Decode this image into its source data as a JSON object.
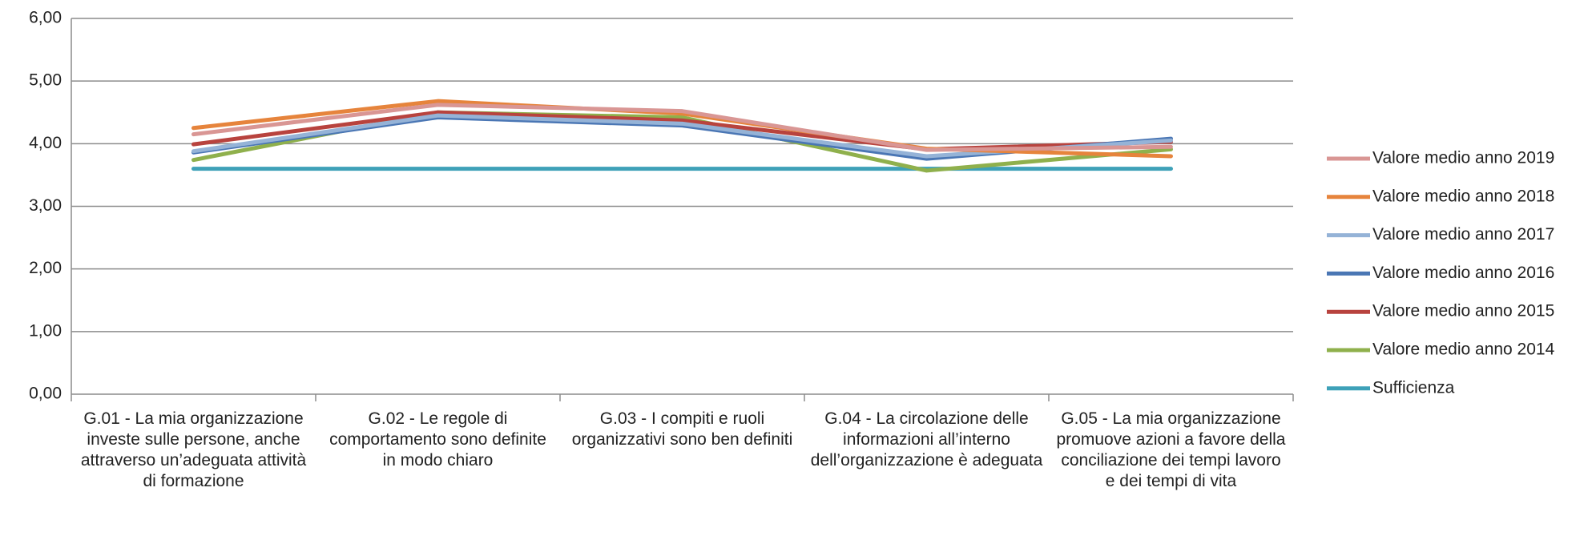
{
  "chart_data": {
    "type": "line",
    "categories": [
      "G.01 - La mia organizzazione investe sulle persone, anche attraverso un’adeguata attività di formazione",
      "G.02 - Le regole di comportamento sono definite in modo chiaro",
      "G.03 - I compiti e ruoli organizzativi sono ben definiti",
      "G.04 - La circolazione delle informazioni all’interno dell’organizzazione è adeguata",
      "G.05 - La mia organizzazione promuove azioni a favore della conciliazione dei tempi lavoro e dei tempi di vita"
    ],
    "series": [
      {
        "name": "Valore medio anno 2019",
        "color": "#d99694",
        "values": [
          4.15,
          4.62,
          4.52,
          3.9,
          3.95
        ]
      },
      {
        "name": "Valore medio anno 2018",
        "color": "#e6843c",
        "values": [
          4.25,
          4.68,
          4.48,
          3.92,
          3.8
        ]
      },
      {
        "name": "Valore medio anno 2017",
        "color": "#95b3d7",
        "values": [
          3.88,
          4.45,
          4.32,
          3.8,
          4.05
        ]
      },
      {
        "name": "Valore medio anno 2016",
        "color": "#4a76b4",
        "values": [
          3.86,
          4.42,
          4.29,
          3.76,
          4.08
        ]
      },
      {
        "name": "Valore medio anno 2015",
        "color": "#b8433e",
        "values": [
          3.99,
          4.5,
          4.37,
          3.91,
          4.03
        ]
      },
      {
        "name": "Valore medio anno 2014",
        "color": "#8fb04c",
        "values": [
          3.74,
          4.5,
          4.42,
          3.57,
          3.91
        ]
      },
      {
        "name": "Sufficienza",
        "color": "#3ea1b8",
        "values": [
          3.6,
          3.6,
          3.6,
          3.6,
          3.6
        ]
      }
    ],
    "ylim": [
      0,
      6
    ],
    "yticks": [
      {
        "value": 0,
        "label": "0,00"
      },
      {
        "value": 1,
        "label": "1,00"
      },
      {
        "value": 2,
        "label": "2,00"
      },
      {
        "value": 3,
        "label": "3,00"
      },
      {
        "value": 4,
        "label": "4,00"
      },
      {
        "value": 5,
        "label": "5,00"
      },
      {
        "value": 6,
        "label": "6,00"
      }
    ],
    "grid": true,
    "legend": "right"
  }
}
